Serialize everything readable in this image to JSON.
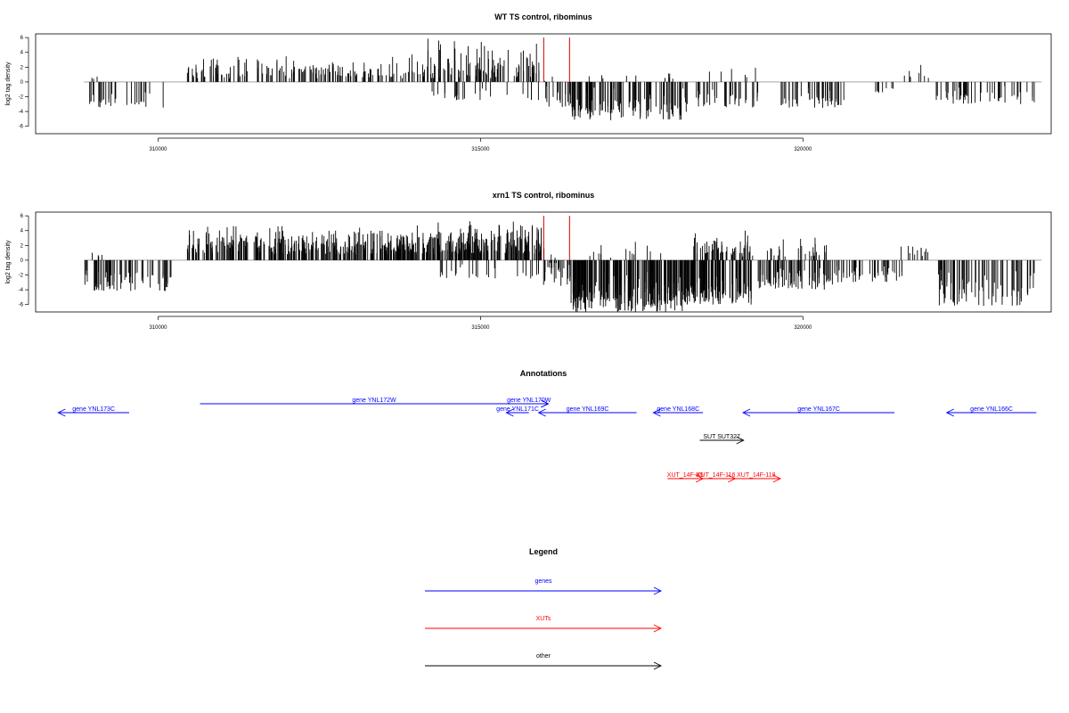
{
  "chart_data": [
    {
      "type": "bar",
      "title": "WT TS control, ribominus",
      "ylabel": "log2 tag density",
      "xlabel": "",
      "xlim": [
        308100,
        323850
      ],
      "ylim": [
        -7,
        6.5
      ],
      "yticks": [
        6,
        4,
        2,
        0,
        -2,
        -4,
        -6
      ],
      "xticks": [
        310000,
        315000,
        320000
      ],
      "xtick_labels": [
        "310000",
        "315000",
        "320000"
      ],
      "grid": false,
      "colors": {
        "bars": "#000000",
        "highlight": "#cc0000",
        "baseline": "#999999"
      },
      "series": [
        {
          "values_from_segments": [
            {
              "start": 308900,
              "end": 310100,
              "seed": 11,
              "min": -3.5,
              "max": -0.8,
              "n": 30
            },
            {
              "start": 308950,
              "end": 309150,
              "seed": 12,
              "min": 0.3,
              "max": 1.2,
              "n": 3
            },
            {
              "start": 310450,
              "end": 314100,
              "seed": 21,
              "min": 0.5,
              "max": 3.8,
              "n": 160
            },
            {
              "start": 314100,
              "end": 315950,
              "seed": 22,
              "min": 0.5,
              "max": 6.0,
              "n": 110
            },
            {
              "start": 314200,
              "end": 315900,
              "seed": 23,
              "min": -2.5,
              "max": -0.4,
              "n": 25
            },
            {
              "start": 315950,
              "end": 316400,
              "seed": 31,
              "min": -3.5,
              "max": 1.5,
              "n": 20
            },
            {
              "start": 316400,
              "end": 318200,
              "seed": 32,
              "min": -5.2,
              "max": -0.6,
              "n": 120
            },
            {
              "start": 316500,
              "end": 318100,
              "seed": 33,
              "min": 0.3,
              "max": 1.5,
              "n": 10
            },
            {
              "start": 318200,
              "end": 319300,
              "seed": 34,
              "min": -3.5,
              "max": -0.5,
              "n": 40
            },
            {
              "start": 318300,
              "end": 319300,
              "seed": 35,
              "min": 0.5,
              "max": 2.8,
              "n": 6
            },
            {
              "start": 319650,
              "end": 320700,
              "seed": 41,
              "min": -3.5,
              "max": -0.5,
              "n": 50
            },
            {
              "start": 321100,
              "end": 321400,
              "seed": 42,
              "min": -1.5,
              "max": -0.5,
              "n": 8
            },
            {
              "start": 321550,
              "end": 322000,
              "seed": 43,
              "min": 0.5,
              "max": 3.0,
              "n": 8
            },
            {
              "start": 322050,
              "end": 323600,
              "seed": 44,
              "min": -3.0,
              "max": -0.5,
              "n": 50
            }
          ]
        }
      ],
      "highlight_x": [
        315980,
        316380
      ],
      "highlight_y": 6.0
    },
    {
      "type": "bar",
      "title": "xrn1 TS control, ribominus",
      "ylabel": "log2 tag density",
      "xlabel": "",
      "xlim": [
        308100,
        323850
      ],
      "ylim": [
        -7,
        6.5
      ],
      "yticks": [
        6,
        4,
        2,
        0,
        -2,
        -4,
        -6
      ],
      "xticks": [
        310000,
        315000,
        320000
      ],
      "xtick_labels": [
        "310000",
        "315000",
        "320000"
      ],
      "grid": false,
      "colors": {
        "bars": "#000000",
        "highlight": "#cc0000",
        "baseline": "#999999"
      },
      "series": [
        {
          "values_from_segments": [
            {
              "start": 308850,
              "end": 310200,
              "seed": 51,
              "min": -4.2,
              "max": -0.8,
              "n": 70
            },
            {
              "start": 308900,
              "end": 309200,
              "seed": 52,
              "min": 0.5,
              "max": 1.3,
              "n": 4
            },
            {
              "start": 310450,
              "end": 314000,
              "seed": 61,
              "min": 0.8,
              "max": 5.0,
              "n": 320
            },
            {
              "start": 314000,
              "end": 315950,
              "seed": 62,
              "min": 0.8,
              "max": 6.0,
              "n": 200
            },
            {
              "start": 314300,
              "end": 315900,
              "seed": 63,
              "min": -2.5,
              "max": -0.5,
              "n": 25
            },
            {
              "start": 315950,
              "end": 316400,
              "seed": 71,
              "min": -3.5,
              "max": 2.0,
              "n": 30
            },
            {
              "start": 316400,
              "end": 318200,
              "seed": 72,
              "min": -7.0,
              "max": -1.0,
              "n": 220
            },
            {
              "start": 316500,
              "end": 317900,
              "seed": 73,
              "min": 0.3,
              "max": 2.5,
              "n": 14
            },
            {
              "start": 318200,
              "end": 319200,
              "seed": 74,
              "min": -6.0,
              "max": -1.0,
              "n": 120
            },
            {
              "start": 318200,
              "end": 319300,
              "seed": 75,
              "min": 0.5,
              "max": 4.5,
              "n": 60
            },
            {
              "start": 319300,
              "end": 320500,
              "seed": 81,
              "min": -4.0,
              "max": -0.5,
              "n": 80
            },
            {
              "start": 319400,
              "end": 320500,
              "seed": 82,
              "min": 0.5,
              "max": 3.8,
              "n": 25
            },
            {
              "start": 320500,
              "end": 321600,
              "seed": 83,
              "min": -3.0,
              "max": -0.5,
              "n": 45
            },
            {
              "start": 321500,
              "end": 322000,
              "seed": 84,
              "min": 0.5,
              "max": 3.3,
              "n": 12
            },
            {
              "start": 322100,
              "end": 323600,
              "seed": 85,
              "min": -6.2,
              "max": -0.5,
              "n": 75
            }
          ]
        }
      ],
      "highlight_x": [
        315980,
        316380
      ],
      "highlight_y": 6.0
    }
  ],
  "annotations": {
    "title": "Annotations",
    "features": [
      {
        "label": "gene YNL173C",
        "start": 308450,
        "end": 309550,
        "row": 2,
        "color": "#0000ff",
        "dir": "left"
      },
      {
        "label": "gene YNL172W",
        "start": 310650,
        "end": 316050,
        "row": 1,
        "color": "#0000ff",
        "dir": "right"
      },
      {
        "label": "gene YNL170W",
        "start": 315450,
        "end": 316050,
        "row": 1,
        "color": "#0000ff",
        "dir": "right"
      },
      {
        "label": "gene YNL171C",
        "start": 315400,
        "end": 315750,
        "row": 2,
        "color": "#0000ff",
        "dir": "left"
      },
      {
        "label": "gene YNL169C",
        "start": 315900,
        "end": 317420,
        "row": 2,
        "color": "#0000ff",
        "dir": "left"
      },
      {
        "label": "gene YNL168C",
        "start": 317680,
        "end": 318450,
        "row": 2,
        "color": "#0000ff",
        "dir": "left"
      },
      {
        "label": "gene YNL167C",
        "start": 319070,
        "end": 321420,
        "row": 2,
        "color": "#0000ff",
        "dir": "left"
      },
      {
        "label": "gene YNL166C",
        "start": 322230,
        "end": 323620,
        "row": 2,
        "color": "#0000ff",
        "dir": "left"
      },
      {
        "label": "SUT SUT327",
        "start": 318400,
        "end": 319080,
        "row": 3,
        "color": "#000000",
        "dir": "right"
      },
      {
        "label": "XUT_14F-K5",
        "start": 317900,
        "end": 318450,
        "row": 5,
        "color": "#ff0000",
        "dir": "right"
      },
      {
        "label": "XUT_14F-116",
        "start": 318350,
        "end": 318950,
        "row": 5,
        "color": "#ff0000",
        "dir": "right"
      },
      {
        "label": "XUT_14F-118",
        "start": 318900,
        "end": 319650,
        "row": 5,
        "color": "#ff0000",
        "dir": "right"
      }
    ]
  },
  "legend": {
    "title": "Legend",
    "items": [
      {
        "label": "genes",
        "color": "#0000ff"
      },
      {
        "label": "XUTs",
        "color": "#ff0000"
      },
      {
        "label": "other",
        "color": "#000000"
      }
    ]
  }
}
